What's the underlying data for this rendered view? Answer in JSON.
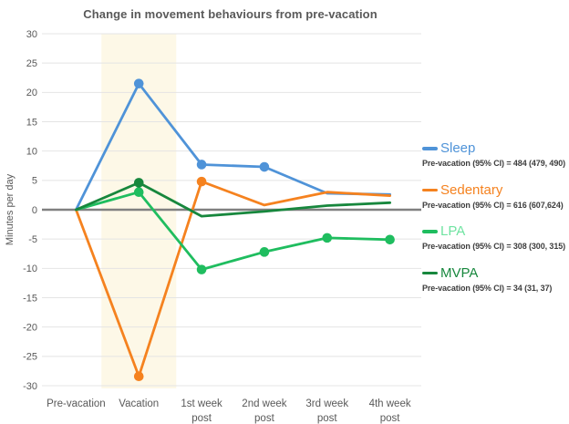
{
  "figure": {
    "title": "Change in movement behaviours from pre-vacation",
    "y_axis_title": "Minutes per day"
  },
  "chart_data": {
    "type": "line",
    "title": "Change in movement behaviours from pre-vacation",
    "ylabel": "Minutes per day",
    "xlabel": "",
    "ylim": [
      -30,
      30
    ],
    "ytick_step": 5,
    "yticks": [
      30,
      25,
      20,
      15,
      10,
      5,
      0,
      -5,
      -10,
      -15,
      -20,
      -25,
      -30
    ],
    "grid": true,
    "legend_position": "right",
    "categories": [
      "Pre-vacation",
      "Vacation",
      "1st week post",
      "2nd week post",
      "3rd week post",
      "4th week post"
    ],
    "highlight_band": {
      "category": "Vacation",
      "color": "#FDF8E7"
    },
    "series": [
      {
        "name": "Sleep",
        "color": "#4F93D8",
        "values": [
          0,
          21.5,
          7.7,
          7.3,
          2.8,
          2.6
        ],
        "marker_indices": [
          1,
          2,
          3
        ],
        "legend_sub": "Pre-vacation (95% CI) = 484 (479, 490)"
      },
      {
        "name": "Sedentary",
        "color": "#F5821F",
        "values": [
          0,
          -28.4,
          4.8,
          0.8,
          3.0,
          2.4
        ],
        "marker_indices": [
          1,
          2
        ],
        "legend_sub": "Pre-vacation (95% CI) = 616 (607,624)"
      },
      {
        "name": "LPA",
        "color": "#1FBD5F",
        "label_color": "#6FE3A1",
        "values": [
          0,
          3.0,
          -10.2,
          -7.2,
          -4.8,
          -5.1
        ],
        "marker_indices": [
          1,
          2,
          3,
          4,
          5
        ],
        "legend_sub": "Pre-vacation (95% CI) = 308 (300, 315)"
      },
      {
        "name": "MVPA",
        "color": "#17873D",
        "values": [
          0,
          4.6,
          -1.1,
          -0.3,
          0.7,
          1.2
        ],
        "marker_indices": [
          1
        ],
        "legend_sub": "Pre-vacation (95% CI) = 34 (31, 37)"
      }
    ],
    "colors": {
      "gridline": "#E4E4E4",
      "zero_line": "#808080",
      "axis_text": "#595959",
      "legend_sub_text": "#3d3d3d"
    }
  }
}
